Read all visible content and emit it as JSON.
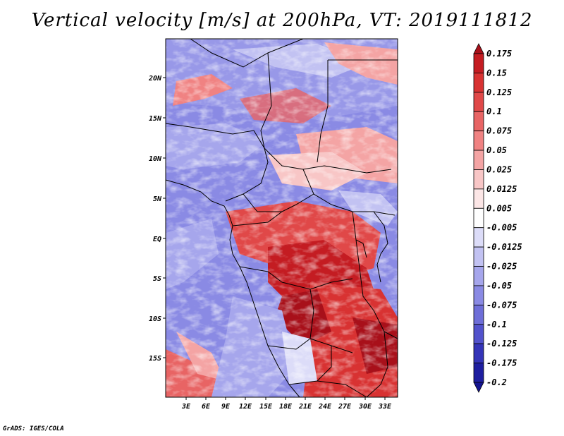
{
  "title": "Vertical velocity [m/s] at 200hPa, VT: 2019111812",
  "footer": "GrADS: IGES/COLA",
  "lat_labels": [
    "20N",
    "15N",
    "10N",
    "5N",
    "EQ",
    "5S",
    "10S",
    "15S"
  ],
  "lon_labels": [
    "3E",
    "6E",
    "9E",
    "12E",
    "15E",
    "18E",
    "21E",
    "24E",
    "27E",
    "30E",
    "33E"
  ],
  "colorbar": {
    "levels": [
      "0.175",
      "0.15",
      "0.125",
      "0.1",
      "0.075",
      "0.05",
      "0.025",
      "0.0125",
      "0.005",
      "-0.005",
      "-0.0125",
      "-0.025",
      "-0.05",
      "-0.075",
      "-0.1",
      "-0.125",
      "-0.175",
      "-0.2"
    ],
    "colors": [
      "#a8101a",
      "#c41c22",
      "#d83232",
      "#e04848",
      "#e86464",
      "#f08282",
      "#f4a4a4",
      "#f8c6c6",
      "#fce6e6",
      "#ffffff",
      "#dcdcf8",
      "#c2c2f2",
      "#a6a6ec",
      "#8a8ae4",
      "#6e6ed8",
      "#5252cc",
      "#3434b8",
      "#1e1ea0",
      "#141490"
    ]
  }
}
